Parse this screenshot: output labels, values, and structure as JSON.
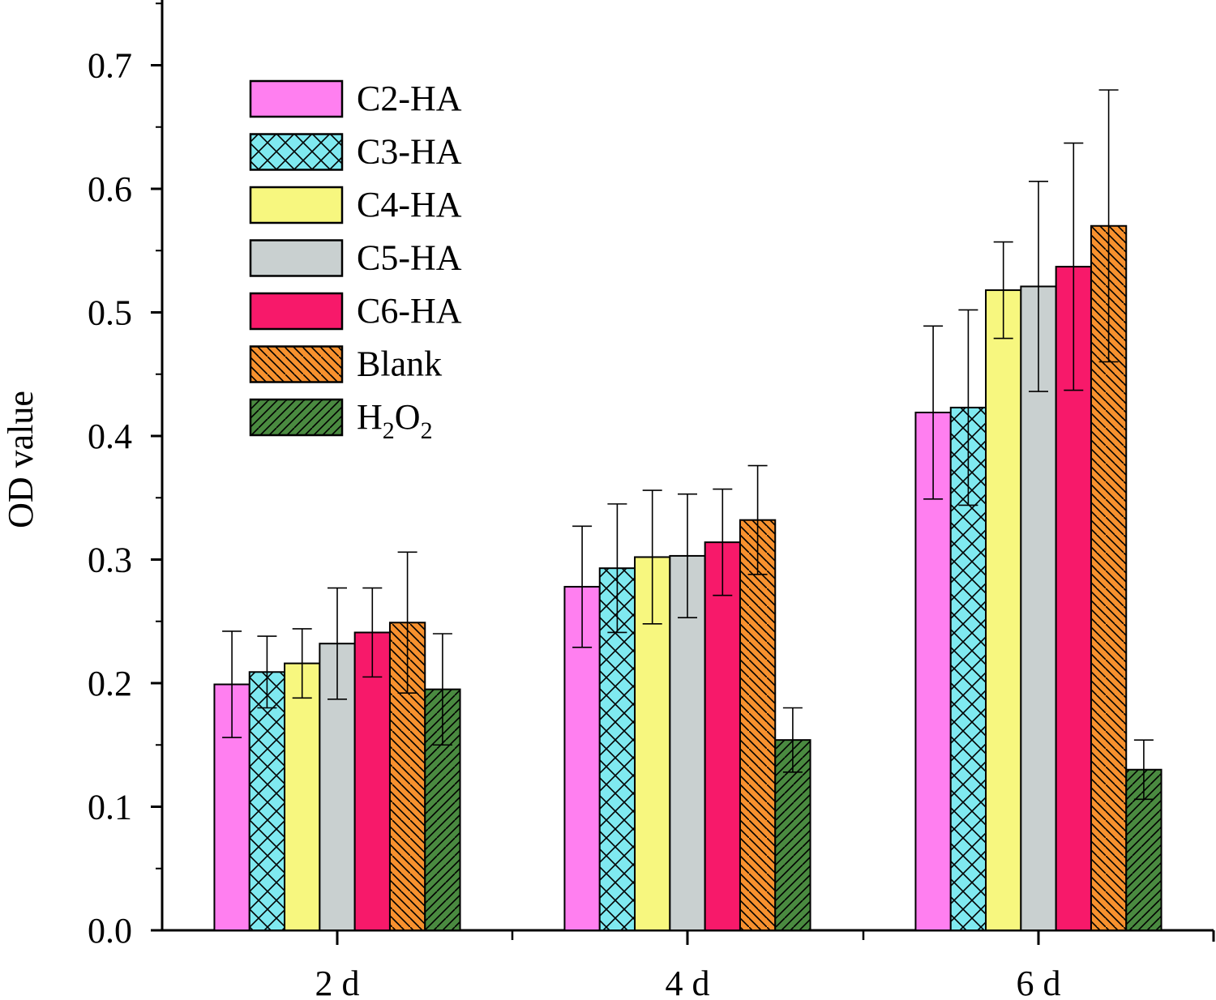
{
  "chart_data": {
    "type": "bar",
    "title": "",
    "xlabel": "",
    "ylabel": "OD value",
    "ylim": [
      0,
      0.75
    ],
    "yticks": [
      "0.0",
      "0.1",
      "0.2",
      "0.3",
      "0.4",
      "0.5",
      "0.6",
      "0.7"
    ],
    "categories": [
      "2 d",
      "4 d",
      "6 d"
    ],
    "legend_position": "top-left",
    "grid": false,
    "series": [
      {
        "name": "C2-HA",
        "legend_main": "C2-HA",
        "legend_sub1": "",
        "legend_mid": "",
        "legend_sub2": "",
        "color": "#ff7ff0",
        "pattern": "none",
        "values": [
          0.199,
          0.278,
          0.419
        ],
        "errors": [
          0.043,
          0.049,
          0.07
        ]
      },
      {
        "name": "C3-HA",
        "legend_main": "C3-HA",
        "legend_sub1": "",
        "legend_mid": "",
        "legend_sub2": "",
        "color": "#7fe9f0",
        "pattern": "cross",
        "values": [
          0.209,
          0.293,
          0.423
        ],
        "errors": [
          0.029,
          0.052,
          0.079
        ]
      },
      {
        "name": "C4-HA",
        "legend_main": "C4-HA",
        "legend_sub1": "",
        "legend_mid": "",
        "legend_sub2": "",
        "color": "#f7f77f",
        "pattern": "none",
        "values": [
          0.216,
          0.302,
          0.518
        ],
        "errors": [
          0.028,
          0.054,
          0.039
        ]
      },
      {
        "name": "C5-HA",
        "legend_main": "C5-HA",
        "legend_sub1": "",
        "legend_mid": "",
        "legend_sub2": "",
        "color": "#c9d0d0",
        "pattern": "none",
        "values": [
          0.232,
          0.303,
          0.521
        ],
        "errors": [
          0.045,
          0.05,
          0.085
        ]
      },
      {
        "name": "C6-HA",
        "legend_main": "C6-HA",
        "legend_sub1": "",
        "legend_mid": "",
        "legend_sub2": "",
        "color": "#f7196a",
        "pattern": "none",
        "values": [
          0.241,
          0.314,
          0.537
        ],
        "errors": [
          0.036,
          0.043,
          0.1
        ]
      },
      {
        "name": "Blank",
        "legend_main": "Blank",
        "legend_sub1": "",
        "legend_mid": "",
        "legend_sub2": "",
        "color": "#f7912e",
        "pattern": "back",
        "values": [
          0.249,
          0.332,
          0.57
        ],
        "errors": [
          0.057,
          0.044,
          0.11
        ]
      },
      {
        "name": "H2O2",
        "legend_main": "H",
        "legend_sub1": "2",
        "legend_mid": "O",
        "legend_sub2": "2",
        "color": "#4a8a40",
        "pattern": "fwd",
        "values": [
          0.195,
          0.154,
          0.13
        ],
        "errors": [
          0.045,
          0.026,
          0.024
        ]
      }
    ]
  }
}
